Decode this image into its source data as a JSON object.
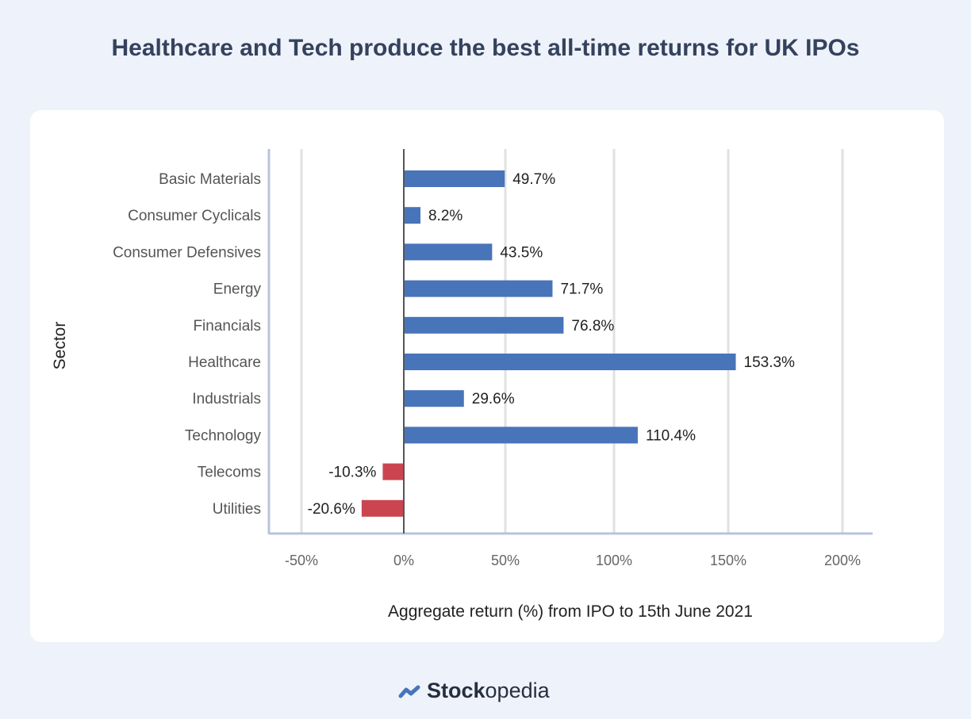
{
  "title": "Healthcare and Tech produce the best all-time returns for UK IPOs",
  "brand": {
    "bold": "Stock",
    "light": "opedia"
  },
  "chart_data": {
    "type": "bar",
    "orientation": "horizontal",
    "categories": [
      "Basic Materials",
      "Consumer Cyclicals",
      "Consumer Defensives",
      "Energy",
      "Financials",
      "Healthcare",
      "Industrials",
      "Technology",
      "Telecoms",
      "Utilities"
    ],
    "values": [
      49.7,
      8.2,
      43.5,
      71.7,
      76.8,
      153.3,
      29.6,
      110.4,
      -10.3,
      -20.6
    ],
    "data_labels": [
      "49.7%",
      "8.2%",
      "43.5%",
      "71.7%",
      "76.8%",
      "153.3%",
      "29.6%",
      "110.4%",
      "-10.3%",
      "-20.6%"
    ],
    "xlabel": "Aggregate return (%) from IPO to 15th June 2021",
    "ylabel": "Sector",
    "xlim": [
      -62,
      214
    ],
    "xticks": [
      -50,
      0,
      50,
      100,
      150,
      200
    ],
    "xtick_labels": [
      "-50%",
      "0%",
      "50%",
      "100%",
      "150%",
      "200%"
    ],
    "grid": true,
    "colors": {
      "positive": "#4874b9",
      "negative": "#cb4551"
    }
  }
}
